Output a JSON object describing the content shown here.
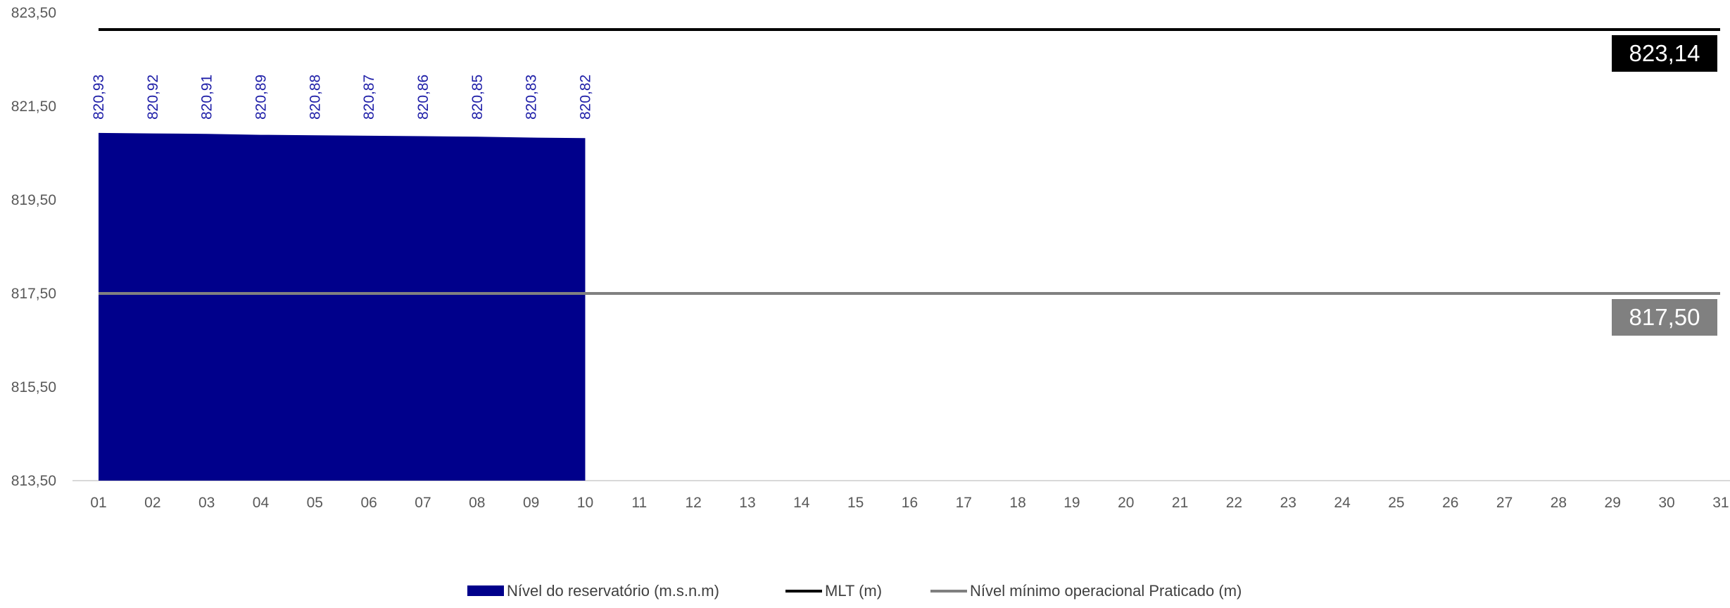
{
  "chart_data": {
    "type": "area",
    "title": "",
    "xlabel": "",
    "ylabel": "",
    "ylim": [
      813.5,
      823.5
    ],
    "y_ticks": [
      "813,50",
      "815,50",
      "817,50",
      "819,50",
      "821,50",
      "823,50"
    ],
    "y_tick_values": [
      813.5,
      815.5,
      817.5,
      819.5,
      821.5,
      823.5
    ],
    "x_categories": [
      "01",
      "02",
      "03",
      "04",
      "05",
      "06",
      "07",
      "08",
      "09",
      "10",
      "11",
      "12",
      "13",
      "14",
      "15",
      "16",
      "17",
      "18",
      "19",
      "20",
      "21",
      "22",
      "23",
      "24",
      "25",
      "26",
      "27",
      "28",
      "29",
      "30",
      "31"
    ],
    "series": [
      {
        "name": "Nível do reservatório (m.s.n.m)",
        "kind": "area",
        "color": "#00008b",
        "values": [
          820.93,
          820.92,
          820.91,
          820.89,
          820.88,
          820.87,
          820.86,
          820.85,
          820.83,
          820.82
        ],
        "labels": [
          "820,93",
          "820,92",
          "820,91",
          "820,89",
          "820,88",
          "820,87",
          "820,86",
          "820,85",
          "820,83",
          "820,82"
        ],
        "label_color": "#1f1fa8"
      },
      {
        "name": "MLT (m)",
        "kind": "line",
        "color": "#000000",
        "value": 823.14,
        "value_label": "823,14"
      },
      {
        "name": "Nível mínimo operacional Praticado (m)",
        "kind": "line",
        "color": "#808080",
        "value": 817.5,
        "value_label": "817,50"
      }
    ],
    "legend": {
      "position": "bottom",
      "items": [
        {
          "label": "Nível do reservatório (m.s.n.m)",
          "color": "#00008b",
          "swatch": "box"
        },
        {
          "label": "MLT (m)",
          "color": "#000000",
          "swatch": "line"
        },
        {
          "label": "Nível mínimo operacional Praticado (m)",
          "color": "#808080",
          "swatch": "line"
        }
      ]
    },
    "grid": false
  }
}
